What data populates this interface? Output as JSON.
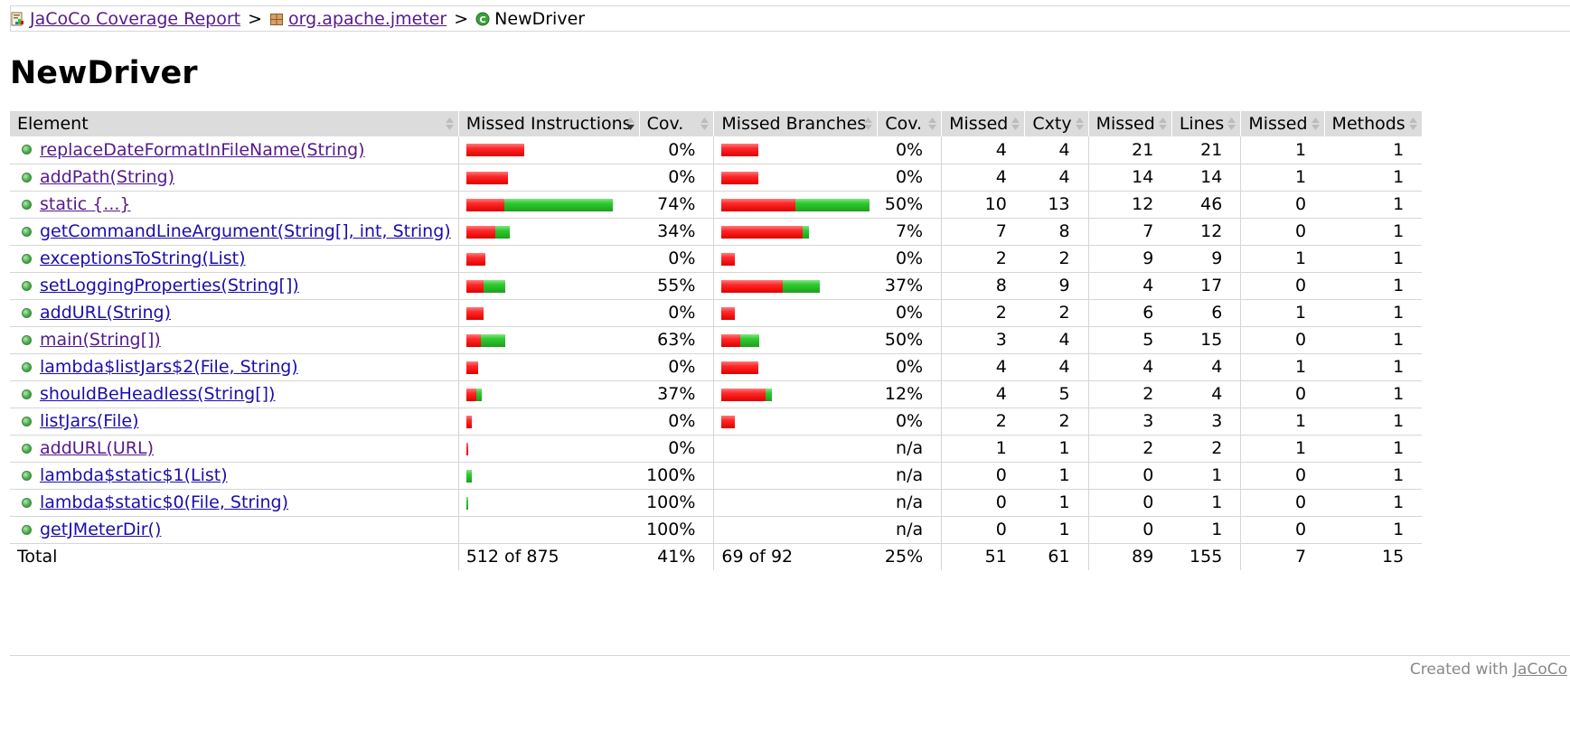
{
  "breadcrumb": {
    "report_label": "JaCoCo Coverage Report",
    "package_label": "org.apache.jmeter",
    "class_label": "NewDriver",
    "separator": ">"
  },
  "page_title": "NewDriver",
  "table": {
    "headers": {
      "element": "Element",
      "missed_instructions": "Missed Instructions",
      "instr_cov": "Cov.",
      "missed_branches": "Missed Branches",
      "branch_cov": "Cov.",
      "missed_cxty": "Missed",
      "cxty": "Cxty",
      "missed_lines": "Missed",
      "lines": "Lines",
      "missed_methods": "Missed",
      "methods": "Methods"
    },
    "rows": [
      {
        "name": "replaceDateFormatInFileName(String)",
        "visited": true,
        "instr_missed_frac": 0.4,
        "instr_covered_frac": 0.0,
        "instr_cov": "0%",
        "br_missed_frac": 0.25,
        "br_covered_frac": 0.0,
        "branch_cov": "0%",
        "missed_cxty": "4",
        "cxty": "4",
        "missed_lines": "21",
        "lines": "21",
        "missed_methods": "1",
        "methods": "1"
      },
      {
        "name": "addPath(String)",
        "visited": true,
        "instr_missed_frac": 0.29,
        "instr_covered_frac": 0.0,
        "instr_cov": "0%",
        "br_missed_frac": 0.25,
        "br_covered_frac": 0.0,
        "branch_cov": "0%",
        "missed_cxty": "4",
        "cxty": "4",
        "missed_lines": "14",
        "lines": "14",
        "missed_methods": "1",
        "methods": "1"
      },
      {
        "name": "static {...}",
        "visited": true,
        "instr_missed_frac": 0.26,
        "instr_covered_frac": 0.75,
        "instr_cov": "74%",
        "br_missed_frac": 0.5,
        "br_covered_frac": 0.5,
        "branch_cov": "50%",
        "missed_cxty": "10",
        "cxty": "13",
        "missed_lines": "12",
        "lines": "46",
        "missed_methods": "0",
        "methods": "1"
      },
      {
        "name": "getCommandLineArgument(String[], int, String)",
        "visited": false,
        "instr_missed_frac": 0.2,
        "instr_covered_frac": 0.1,
        "instr_cov": "34%",
        "br_missed_frac": 0.55,
        "br_covered_frac": 0.04,
        "branch_cov": "7%",
        "missed_cxty": "7",
        "cxty": "8",
        "missed_lines": "7",
        "lines": "12",
        "missed_methods": "0",
        "methods": "1"
      },
      {
        "name": "exceptionsToString(List)",
        "visited": false,
        "instr_missed_frac": 0.13,
        "instr_covered_frac": 0.0,
        "instr_cov": "0%",
        "br_missed_frac": 0.09,
        "br_covered_frac": 0.0,
        "branch_cov": "0%",
        "missed_cxty": "2",
        "cxty": "2",
        "missed_lines": "9",
        "lines": "9",
        "missed_methods": "1",
        "methods": "1"
      },
      {
        "name": "setLoggingProperties(String[])",
        "visited": false,
        "instr_missed_frac": 0.12,
        "instr_covered_frac": 0.15,
        "instr_cov": "55%",
        "br_missed_frac": 0.42,
        "br_covered_frac": 0.25,
        "branch_cov": "37%",
        "missed_cxty": "8",
        "cxty": "9",
        "missed_lines": "4",
        "lines": "17",
        "missed_methods": "0",
        "methods": "1"
      },
      {
        "name": "addURL(String)",
        "visited": false,
        "instr_missed_frac": 0.12,
        "instr_covered_frac": 0.0,
        "instr_cov": "0%",
        "br_missed_frac": 0.09,
        "br_covered_frac": 0.0,
        "branch_cov": "0%",
        "missed_cxty": "2",
        "cxty": "2",
        "missed_lines": "6",
        "lines": "6",
        "missed_methods": "1",
        "methods": "1"
      },
      {
        "name": "main(String[])",
        "visited": true,
        "instr_missed_frac": 0.1,
        "instr_covered_frac": 0.17,
        "instr_cov": "63%",
        "br_missed_frac": 0.13,
        "br_covered_frac": 0.13,
        "branch_cov": "50%",
        "missed_cxty": "3",
        "cxty": "4",
        "missed_lines": "5",
        "lines": "15",
        "missed_methods": "0",
        "methods": "1"
      },
      {
        "name": "lambda$listJars$2(File, String)",
        "visited": false,
        "instr_missed_frac": 0.08,
        "instr_covered_frac": 0.0,
        "instr_cov": "0%",
        "br_missed_frac": 0.25,
        "br_covered_frac": 0.0,
        "branch_cov": "0%",
        "missed_cxty": "4",
        "cxty": "4",
        "missed_lines": "4",
        "lines": "4",
        "missed_methods": "1",
        "methods": "1"
      },
      {
        "name": "shouldBeHeadless(String[])",
        "visited": false,
        "instr_missed_frac": 0.07,
        "instr_covered_frac": 0.04,
        "instr_cov": "37%",
        "br_missed_frac": 0.3,
        "br_covered_frac": 0.04,
        "branch_cov": "12%",
        "missed_cxty": "4",
        "cxty": "5",
        "missed_lines": "2",
        "lines": "4",
        "missed_methods": "0",
        "methods": "1"
      },
      {
        "name": "listJars(File)",
        "visited": false,
        "instr_missed_frac": 0.04,
        "instr_covered_frac": 0.0,
        "instr_cov": "0%",
        "br_missed_frac": 0.09,
        "br_covered_frac": 0.0,
        "branch_cov": "0%",
        "missed_cxty": "2",
        "cxty": "2",
        "missed_lines": "3",
        "lines": "3",
        "missed_methods": "1",
        "methods": "1"
      },
      {
        "name": "addURL(URL)",
        "visited": true,
        "instr_missed_frac": 0.015,
        "instr_covered_frac": 0.0,
        "instr_cov": "0%",
        "br_missed_frac": 0.0,
        "br_covered_frac": 0.0,
        "branch_cov": "n/a",
        "missed_cxty": "1",
        "cxty": "1",
        "missed_lines": "2",
        "lines": "2",
        "missed_methods": "1",
        "methods": "1"
      },
      {
        "name": "lambda$static$1(List)",
        "visited": false,
        "instr_missed_frac": 0.0,
        "instr_covered_frac": 0.04,
        "instr_cov": "100%",
        "br_missed_frac": 0.0,
        "br_covered_frac": 0.0,
        "branch_cov": "n/a",
        "missed_cxty": "0",
        "cxty": "1",
        "missed_lines": "0",
        "lines": "1",
        "missed_methods": "0",
        "methods": "1"
      },
      {
        "name": "lambda$static$0(File, String)",
        "visited": false,
        "instr_missed_frac": 0.0,
        "instr_covered_frac": 0.015,
        "instr_cov": "100%",
        "br_missed_frac": 0.0,
        "br_covered_frac": 0.0,
        "branch_cov": "n/a",
        "missed_cxty": "0",
        "cxty": "1",
        "missed_lines": "0",
        "lines": "1",
        "missed_methods": "0",
        "methods": "1"
      },
      {
        "name": "getJMeterDir()",
        "visited": false,
        "instr_missed_frac": 0.0,
        "instr_covered_frac": 0.0,
        "instr_cov": "100%",
        "br_missed_frac": 0.0,
        "br_covered_frac": 0.0,
        "branch_cov": "n/a",
        "missed_cxty": "0",
        "cxty": "1",
        "missed_lines": "0",
        "lines": "1",
        "missed_methods": "0",
        "methods": "1"
      }
    ],
    "total": {
      "label": "Total",
      "instr": "512 of 875",
      "instr_cov": "41%",
      "branches": "69 of 92",
      "branch_cov": "25%",
      "missed_cxty": "51",
      "cxty": "61",
      "missed_lines": "89",
      "lines": "155",
      "missed_methods": "7",
      "methods": "15"
    }
  },
  "footer": {
    "prefix": "Created with",
    "link": "JaCoCo"
  },
  "colors": {
    "missed": "#e00000",
    "covered": "#1f9f1f",
    "header_bg": "#dcdcdc",
    "link": "#1a0dab",
    "visited_link": "#551a8b"
  }
}
